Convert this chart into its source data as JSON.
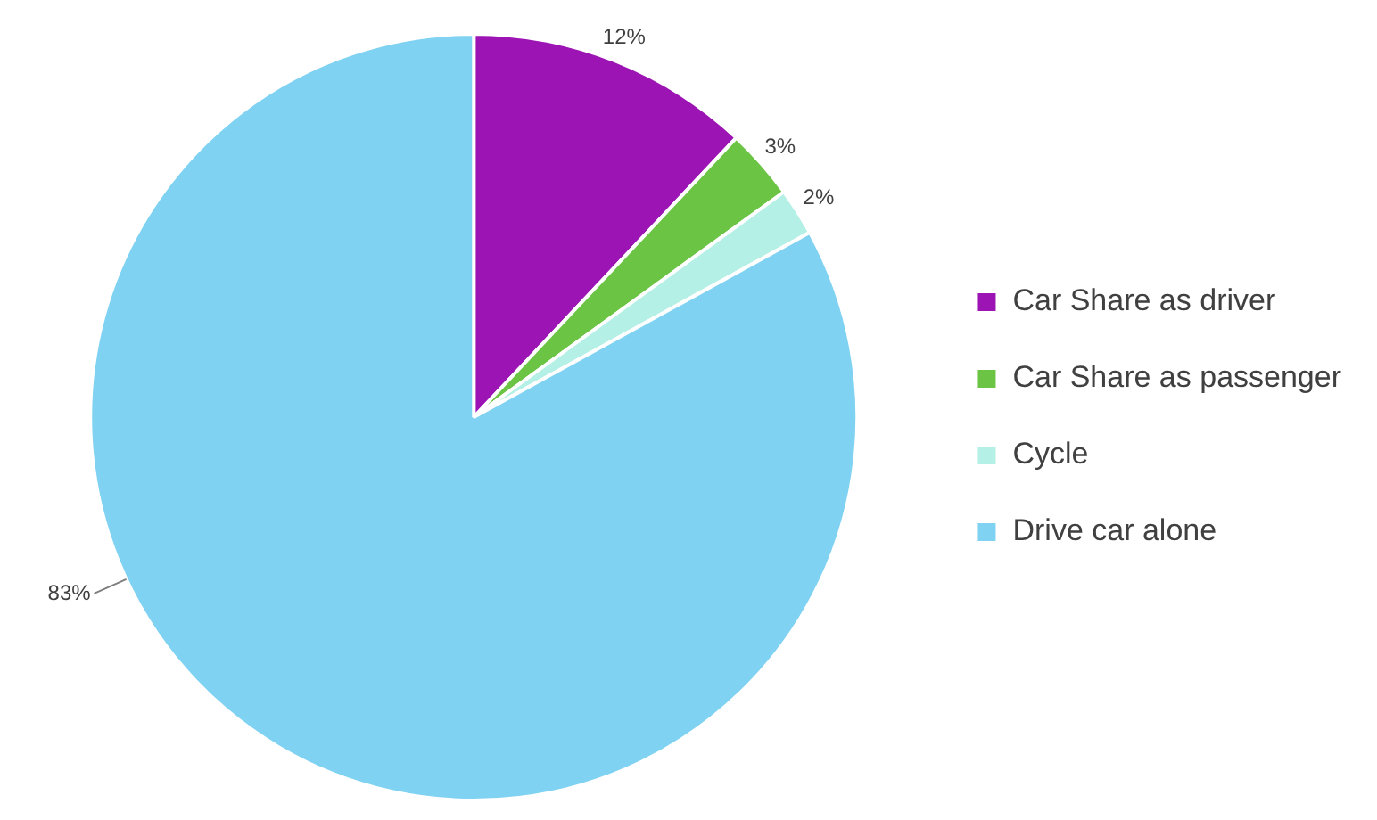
{
  "chart_data": {
    "type": "pie",
    "categories": [
      "Car Share as driver",
      "Car Share as passenger",
      "Cycle",
      "Drive car alone"
    ],
    "values": [
      12,
      3,
      2,
      83
    ],
    "colors": [
      "#9c14b4",
      "#6cc445",
      "#b4f0e6",
      "#7fd2f2"
    ],
    "value_labels": [
      "12%",
      "3%",
      "2%",
      "83%"
    ],
    "legend": "right"
  }
}
